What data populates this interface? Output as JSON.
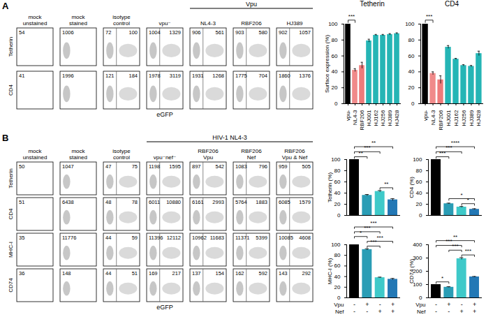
{
  "flow_panels": [
    {
      "label": "A",
      "rows": [
        "Tetherin",
        "CD4"
      ],
      "x_label": "eGFP",
      "group": {
        "label": "Vpu",
        "columns": [
          4,
          6
        ]
      },
      "columns": [
        {
          "label": [
            "mock",
            "unstained"
          ],
          "values": [
            [
              54
            ],
            [
              41
            ]
          ]
        },
        {
          "label": [
            "mock",
            "stained"
          ],
          "values": [
            [
              1006
            ],
            [
              1996
            ]
          ]
        },
        {
          "label": [
            "isotype",
            "control"
          ],
          "values": [
            [
              72,
              100
            ],
            [
              121,
              184
            ]
          ]
        },
        {
          "label": [
            "vpu⁻"
          ],
          "values": [
            [
              1004,
              1329
            ],
            [
              1978,
              3119
            ]
          ]
        },
        {
          "label": [
            "NL4-3"
          ],
          "values": [
            [
              906,
              561
            ],
            [
              1931,
              1268
            ]
          ]
        },
        {
          "label": [
            "RBF206"
          ],
          "values": [
            [
              903,
              580
            ],
            [
              1775,
              704
            ]
          ]
        },
        {
          "label": [
            "HJ389"
          ],
          "values": [
            [
              902,
              1057
            ],
            [
              1860,
              1376
            ]
          ]
        }
      ]
    },
    {
      "label": "B",
      "rows": [
        "Tetherin",
        "CD4",
        "MHC-I",
        "CD74"
      ],
      "x_label": "eGFP",
      "group": {
        "label": "HIV-1 NL4-3",
        "columns": [
          3,
          6
        ]
      },
      "columns": [
        {
          "label": [
            "mock",
            "unstained"
          ],
          "values": [
            [
              50
            ],
            [
              51
            ],
            [
              35
            ],
            [
              36
            ]
          ]
        },
        {
          "label": [
            "mock",
            "stained"
          ],
          "values": [
            [
              1047
            ],
            [
              6438
            ],
            [
              11776
            ],
            [
              148
            ]
          ]
        },
        {
          "label": [
            "isotype",
            "control"
          ],
          "values": [
            [
              47,
              75
            ],
            [
              48,
              78
            ],
            [
              44,
              59
            ],
            [
              44,
              51
            ]
          ]
        },
        {
          "label": [
            "vpu⁻nef⁻"
          ],
          "values": [
            [
              1198,
              1595
            ],
            [
              6011,
              10880
            ],
            [
              11396,
              12112
            ],
            [
              169,
              217
            ]
          ]
        },
        {
          "label": [
            "RBF206",
            "Vpu"
          ],
          "values": [
            [
              897,
              542
            ],
            [
              6161,
              2993
            ],
            [
              10962,
              11683
            ],
            [
              137,
              154
            ]
          ]
        },
        {
          "label": [
            "RBF206",
            "Nef"
          ],
          "values": [
            [
              1083,
              796
            ],
            [
              5764,
              1883
            ],
            [
              11371,
              5399
            ],
            [
              162,
              592
            ]
          ]
        },
        {
          "label": [
            "RBF206",
            "Vpu & Nef"
          ],
          "values": [
            [
              959,
              505
            ],
            [
              6085,
              1579
            ],
            [
              10085,
              4608
            ],
            [
              143,
              292
            ]
          ]
        }
      ]
    }
  ],
  "chart_data": [
    {
      "type": "bar",
      "title": "Tetherin",
      "y_label": "Surface expression (%)",
      "categories": [
        "vpu-",
        "NL4-3",
        "RBF206",
        "HJ001",
        "HJ162",
        "HJ256",
        "HJ389",
        "HJ428"
      ],
      "values": [
        100,
        42,
        48,
        79,
        86,
        86,
        87,
        88
      ],
      "errors": [
        0,
        2,
        4,
        2,
        1,
        1,
        1,
        1
      ],
      "colors": [
        "#000000",
        "#f08a8a",
        "#ee7b7b",
        "#25b5b5",
        "#25b5b5",
        "#25b5b5",
        "#25b5b5",
        "#25b5b5"
      ],
      "ylim": [
        0,
        100
      ],
      "yticks": [
        0,
        20,
        40,
        60,
        80,
        100
      ],
      "significance": [
        {
          "between": [
            0,
            1
          ],
          "label": "***"
        }
      ]
    },
    {
      "type": "bar",
      "title": "CD4",
      "categories": [
        "vpu-",
        "NL4-3",
        "RBF206",
        "HJ001",
        "HJ162",
        "HJ256",
        "HJ389",
        "HJ428"
      ],
      "values": [
        100,
        38,
        30,
        71,
        56,
        48,
        47,
        63
      ],
      "errors": [
        0,
        2,
        5,
        2,
        1,
        1,
        1,
        3
      ],
      "colors": [
        "#000000",
        "#f08a8a",
        "#ee7b7b",
        "#25b5b5",
        "#25b5b5",
        "#25b5b5",
        "#25b5b5",
        "#25b5b5"
      ],
      "ylim": [
        0,
        100
      ],
      "yticks": [
        0,
        20,
        40,
        60,
        80,
        100
      ],
      "significance": [
        {
          "between": [
            0,
            1
          ],
          "label": "***"
        }
      ]
    },
    {
      "type": "bar",
      "y_label": "Tetherin (%)",
      "tick_labels": "y",
      "categories": [
        null,
        null,
        null,
        null
      ],
      "values": [
        100,
        36,
        43,
        28
      ],
      "errors": [
        0,
        1.5,
        1.5,
        2
      ],
      "colors": [
        "#000000",
        "#2a9db5",
        "#3ec9c9",
        "#2378b5"
      ],
      "ylim": [
        0,
        100
      ],
      "yticks": [
        0,
        20,
        40,
        60,
        80,
        100
      ],
      "significance": [
        {
          "between": [
            2,
            3
          ],
          "label": "**"
        },
        {
          "between": [
            0,
            1
          ],
          "label": "**"
        },
        {
          "between": [
            0,
            2
          ],
          "label": "***"
        },
        {
          "between": [
            0,
            3
          ],
          "label": "**"
        }
      ]
    },
    {
      "type": "bar",
      "y_label": "CD4 (%)",
      "tick_labels": "y",
      "categories": [
        null,
        null,
        null,
        null
      ],
      "values": [
        100,
        21,
        15,
        11
      ],
      "errors": [
        0,
        1,
        1,
        1
      ],
      "colors": [
        "#000000",
        "#2a9db5",
        "#3ec9c9",
        "#2378b5"
      ],
      "ylim": [
        0,
        100
      ],
      "yticks": [
        0,
        20,
        40,
        60,
        80,
        100
      ],
      "significance": [
        {
          "between": [
            2,
            3
          ],
          "label": "*"
        },
        {
          "between": [
            1,
            3
          ],
          "label": "*"
        },
        {
          "between": [
            0,
            1
          ],
          "label": "***"
        },
        {
          "between": [
            0,
            2
          ],
          "label": "***"
        },
        {
          "between": [
            0,
            3
          ],
          "label": "****"
        }
      ]
    },
    {
      "type": "bar",
      "y_label": "MHC-I (%)",
      "tick_labels": "y",
      "categories": [
        null,
        null,
        null,
        null
      ],
      "values": [
        100,
        91,
        38,
        35
      ],
      "errors": [
        0,
        1.5,
        1,
        1.5
      ],
      "colors": [
        "#000000",
        "#2a9db5",
        "#3ec9c9",
        "#2378b5"
      ],
      "ylim": [
        0,
        100
      ],
      "yticks": [
        0,
        20,
        40,
        60,
        80,
        100
      ],
      "factors": [
        {
          "name": "Vpu",
          "labels": [
            "-",
            "+",
            "-",
            "+"
          ]
        },
        {
          "name": "Nef",
          "labels": [
            "-",
            "-",
            "+",
            "+"
          ]
        }
      ],
      "significance": [
        {
          "between": [
            1,
            2
          ],
          "label": "***"
        },
        {
          "between": [
            1,
            3
          ],
          "label": "***"
        },
        {
          "between": [
            0,
            1
          ],
          "label": "*"
        },
        {
          "between": [
            0,
            2
          ],
          "label": "***"
        },
        {
          "between": [
            0,
            3
          ],
          "label": "***"
        }
      ]
    },
    {
      "type": "bar",
      "y_label": "CD74 (%)",
      "tick_labels": "y",
      "categories": [
        null,
        null,
        null,
        null
      ],
      "values": [
        100,
        80,
        295,
        158
      ],
      "errors": [
        0,
        4,
        8,
        3
      ],
      "colors": [
        "#000000",
        "#2a9db5",
        "#3ec9c9",
        "#2378b5"
      ],
      "ylim": [
        0,
        400
      ],
      "yticks": [
        0,
        100,
        200,
        300,
        400
      ],
      "factors": [
        {
          "name": "Vpu",
          "labels": [
            "-",
            "+",
            "-",
            "+"
          ]
        },
        {
          "name": "Nef",
          "labels": [
            "-",
            "-",
            "+",
            "+"
          ]
        }
      ],
      "significance": [
        {
          "between": [
            0,
            1
          ],
          "label": "*"
        },
        {
          "between": [
            2,
            3
          ],
          "label": "***"
        },
        {
          "between": [
            1,
            2
          ],
          "label": "***"
        },
        {
          "between": [
            0,
            2
          ],
          "label": "***"
        },
        {
          "between": [
            0,
            3
          ],
          "label": "**"
        }
      ]
    }
  ]
}
